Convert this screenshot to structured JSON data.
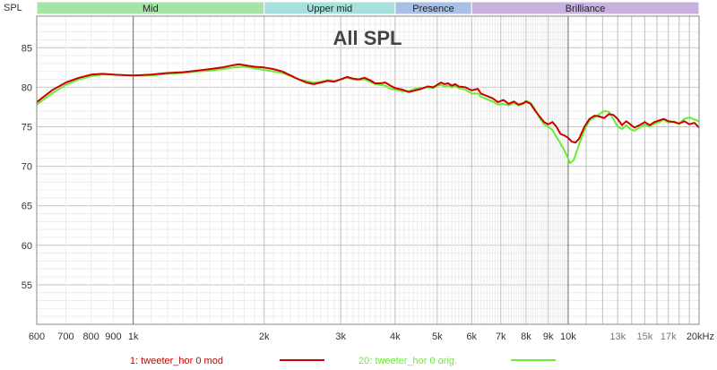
{
  "chart_data": {
    "type": "line",
    "title": "All SPL",
    "ylabel": "SPL",
    "xunit": "kHz",
    "xscale": "log",
    "xlim": [
      600,
      20000
    ],
    "ylim": [
      50,
      89
    ],
    "grid": true,
    "legend_position": "bottom",
    "bands": [
      {
        "name": "Mid",
        "from": 600,
        "to": 2000,
        "color": "#a6e3a6"
      },
      {
        "name": "Upper mid",
        "from": 2000,
        "to": 4000,
        "color": "#a6e0dd"
      },
      {
        "name": "Presence",
        "from": 4000,
        "to": 6000,
        "color": "#a8c0e6"
      },
      {
        "name": "Brilliance",
        "from": 6000,
        "to": 20000,
        "color": "#c8b0df"
      }
    ],
    "y_ticks": [
      "55",
      "60",
      "65",
      "70",
      "75",
      "80",
      "85"
    ],
    "x_ticks": [
      {
        "f": 600,
        "label": "600"
      },
      {
        "f": 700,
        "label": "700"
      },
      {
        "f": 800,
        "label": "800"
      },
      {
        "f": 900,
        "label": "900"
      },
      {
        "f": 1000,
        "label": "1k"
      },
      {
        "f": 2000,
        "label": "2k"
      },
      {
        "f": 3000,
        "label": "3k"
      },
      {
        "f": 4000,
        "label": "4k"
      },
      {
        "f": 5000,
        "label": "5k"
      },
      {
        "f": 6000,
        "label": "6k"
      },
      {
        "f": 7000,
        "label": "7k"
      },
      {
        "f": 8000,
        "label": "8k"
      },
      {
        "f": 9000,
        "label": "9k"
      },
      {
        "f": 10000,
        "label": "10k"
      },
      {
        "f": 13000,
        "label": "13k",
        "faint": true
      },
      {
        "f": 15000,
        "label": "15k",
        "faint": true
      },
      {
        "f": 17000,
        "label": "17k",
        "faint": true
      },
      {
        "f": 20000,
        "label": "20kHz"
      }
    ],
    "series": [
      {
        "name": "1: tweeter_hor 0 mod",
        "color": "#cc0000",
        "points": [
          [
            600,
            78.1
          ],
          [
            650,
            79.6
          ],
          [
            700,
            80.6
          ],
          [
            750,
            81.2
          ],
          [
            800,
            81.6
          ],
          [
            850,
            81.7
          ],
          [
            900,
            81.6
          ],
          [
            1000,
            81.5
          ],
          [
            1100,
            81.6
          ],
          [
            1200,
            81.8
          ],
          [
            1300,
            81.9
          ],
          [
            1400,
            82.1
          ],
          [
            1500,
            82.3
          ],
          [
            1600,
            82.5
          ],
          [
            1700,
            82.8
          ],
          [
            1750,
            82.9
          ],
          [
            1800,
            82.8
          ],
          [
            1900,
            82.6
          ],
          [
            2000,
            82.5
          ],
          [
            2100,
            82.3
          ],
          [
            2200,
            82.0
          ],
          [
            2300,
            81.5
          ],
          [
            2400,
            81.0
          ],
          [
            2500,
            80.6
          ],
          [
            2600,
            80.4
          ],
          [
            2700,
            80.6
          ],
          [
            2800,
            80.8
          ],
          [
            2900,
            80.7
          ],
          [
            3000,
            81.0
          ],
          [
            3100,
            81.3
          ],
          [
            3200,
            81.1
          ],
          [
            3300,
            81.0
          ],
          [
            3400,
            81.2
          ],
          [
            3500,
            80.9
          ],
          [
            3600,
            80.5
          ],
          [
            3700,
            80.5
          ],
          [
            3800,
            80.6
          ],
          [
            3900,
            80.2
          ],
          [
            4000,
            79.9
          ],
          [
            4150,
            79.7
          ],
          [
            4300,
            79.4
          ],
          [
            4450,
            79.6
          ],
          [
            4600,
            79.8
          ],
          [
            4750,
            80.1
          ],
          [
            4900,
            80.0
          ],
          [
            5000,
            80.3
          ],
          [
            5100,
            80.6
          ],
          [
            5200,
            80.4
          ],
          [
            5300,
            80.5
          ],
          [
            5400,
            80.2
          ],
          [
            5500,
            80.4
          ],
          [
            5600,
            80.1
          ],
          [
            5800,
            80.0
          ],
          [
            6000,
            79.6
          ],
          [
            6200,
            79.8
          ],
          [
            6300,
            79.2
          ],
          [
            6500,
            78.9
          ],
          [
            6700,
            78.6
          ],
          [
            6900,
            78.1
          ],
          [
            7100,
            78.4
          ],
          [
            7300,
            77.9
          ],
          [
            7500,
            78.2
          ],
          [
            7700,
            77.8
          ],
          [
            7900,
            78.0
          ],
          [
            8000,
            78.2
          ],
          [
            8200,
            77.9
          ],
          [
            8400,
            77.0
          ],
          [
            8600,
            76.3
          ],
          [
            8800,
            75.6
          ],
          [
            9000,
            75.3
          ],
          [
            9200,
            75.6
          ],
          [
            9400,
            75.0
          ],
          [
            9600,
            74.1
          ],
          [
            9800,
            73.9
          ],
          [
            10000,
            73.6
          ],
          [
            10200,
            73.1
          ],
          [
            10400,
            73.0
          ],
          [
            10600,
            73.5
          ],
          [
            10900,
            75.0
          ],
          [
            11200,
            76.0
          ],
          [
            11500,
            76.4
          ],
          [
            11800,
            76.3
          ],
          [
            12100,
            76.1
          ],
          [
            12400,
            76.6
          ],
          [
            12700,
            76.5
          ],
          [
            13000,
            76.0
          ],
          [
            13300,
            75.2
          ],
          [
            13600,
            75.7
          ],
          [
            13900,
            75.3
          ],
          [
            14200,
            74.9
          ],
          [
            14600,
            75.2
          ],
          [
            15000,
            75.6
          ],
          [
            15400,
            75.2
          ],
          [
            15800,
            75.6
          ],
          [
            16200,
            75.8
          ],
          [
            16600,
            76.0
          ],
          [
            17000,
            75.7
          ],
          [
            17500,
            75.6
          ],
          [
            18000,
            75.4
          ],
          [
            18500,
            75.7
          ],
          [
            19000,
            75.3
          ],
          [
            19500,
            75.5
          ],
          [
            20000,
            74.9
          ]
        ]
      },
      {
        "name": "20: tweeter_hor 0 orig.",
        "color": "#66ee33",
        "points": [
          [
            600,
            77.8
          ],
          [
            650,
            79.2
          ],
          [
            700,
            80.3
          ],
          [
            750,
            81.0
          ],
          [
            800,
            81.4
          ],
          [
            850,
            81.6
          ],
          [
            900,
            81.6
          ],
          [
            1000,
            81.5
          ],
          [
            1100,
            81.5
          ],
          [
            1200,
            81.7
          ],
          [
            1300,
            81.8
          ],
          [
            1400,
            82.0
          ],
          [
            1500,
            82.1
          ],
          [
            1600,
            82.3
          ],
          [
            1700,
            82.5
          ],
          [
            1800,
            82.6
          ],
          [
            1900,
            82.4
          ],
          [
            2000,
            82.2
          ],
          [
            2100,
            82.0
          ],
          [
            2200,
            81.8
          ],
          [
            2300,
            81.4
          ],
          [
            2400,
            81.0
          ],
          [
            2500,
            80.8
          ],
          [
            2600,
            80.6
          ],
          [
            2700,
            80.7
          ],
          [
            2800,
            80.9
          ],
          [
            2900,
            80.8
          ],
          [
            3000,
            81.0
          ],
          [
            3100,
            81.2
          ],
          [
            3200,
            81.0
          ],
          [
            3300,
            80.9
          ],
          [
            3400,
            81.0
          ],
          [
            3500,
            80.7
          ],
          [
            3600,
            80.4
          ],
          [
            3700,
            80.3
          ],
          [
            3800,
            80.2
          ],
          [
            3900,
            79.8
          ],
          [
            4000,
            79.7
          ],
          [
            4150,
            79.5
          ],
          [
            4300,
            79.5
          ],
          [
            4450,
            79.8
          ],
          [
            4600,
            79.9
          ],
          [
            4750,
            80.0
          ],
          [
            4900,
            79.9
          ],
          [
            5000,
            80.2
          ],
          [
            5100,
            80.3
          ],
          [
            5200,
            80.1
          ],
          [
            5300,
            80.2
          ],
          [
            5400,
            80.0
          ],
          [
            5500,
            80.1
          ],
          [
            5600,
            79.9
          ],
          [
            5800,
            79.7
          ],
          [
            6000,
            79.2
          ],
          [
            6200,
            79.2
          ],
          [
            6300,
            78.8
          ],
          [
            6500,
            78.5
          ],
          [
            6700,
            78.2
          ],
          [
            6900,
            77.8
          ],
          [
            7100,
            77.9
          ],
          [
            7300,
            77.7
          ],
          [
            7500,
            78.0
          ],
          [
            7700,
            77.7
          ],
          [
            7900,
            77.9
          ],
          [
            8000,
            78.3
          ],
          [
            8200,
            78.0
          ],
          [
            8400,
            77.2
          ],
          [
            8600,
            76.1
          ],
          [
            8800,
            75.3
          ],
          [
            9000,
            75.0
          ],
          [
            9200,
            74.6
          ],
          [
            9400,
            73.7
          ],
          [
            9600,
            72.9
          ],
          [
            9800,
            72.0
          ],
          [
            10000,
            71.0
          ],
          [
            10100,
            70.4
          ],
          [
            10300,
            70.8
          ],
          [
            10600,
            72.8
          ],
          [
            10900,
            74.6
          ],
          [
            11200,
            75.8
          ],
          [
            11500,
            76.2
          ],
          [
            11800,
            76.6
          ],
          [
            12100,
            77.0
          ],
          [
            12400,
            76.9
          ],
          [
            12700,
            76.0
          ],
          [
            13000,
            75.0
          ],
          [
            13300,
            74.7
          ],
          [
            13600,
            75.2
          ],
          [
            13900,
            74.7
          ],
          [
            14200,
            74.5
          ],
          [
            14600,
            74.9
          ],
          [
            15000,
            75.3
          ],
          [
            15400,
            75.0
          ],
          [
            15800,
            75.4
          ],
          [
            16200,
            75.6
          ],
          [
            16600,
            75.9
          ],
          [
            17000,
            75.5
          ],
          [
            17500,
            75.7
          ],
          [
            18000,
            75.4
          ],
          [
            18500,
            76.0
          ],
          [
            19000,
            76.2
          ],
          [
            19500,
            75.9
          ],
          [
            20000,
            75.7
          ]
        ]
      }
    ]
  }
}
